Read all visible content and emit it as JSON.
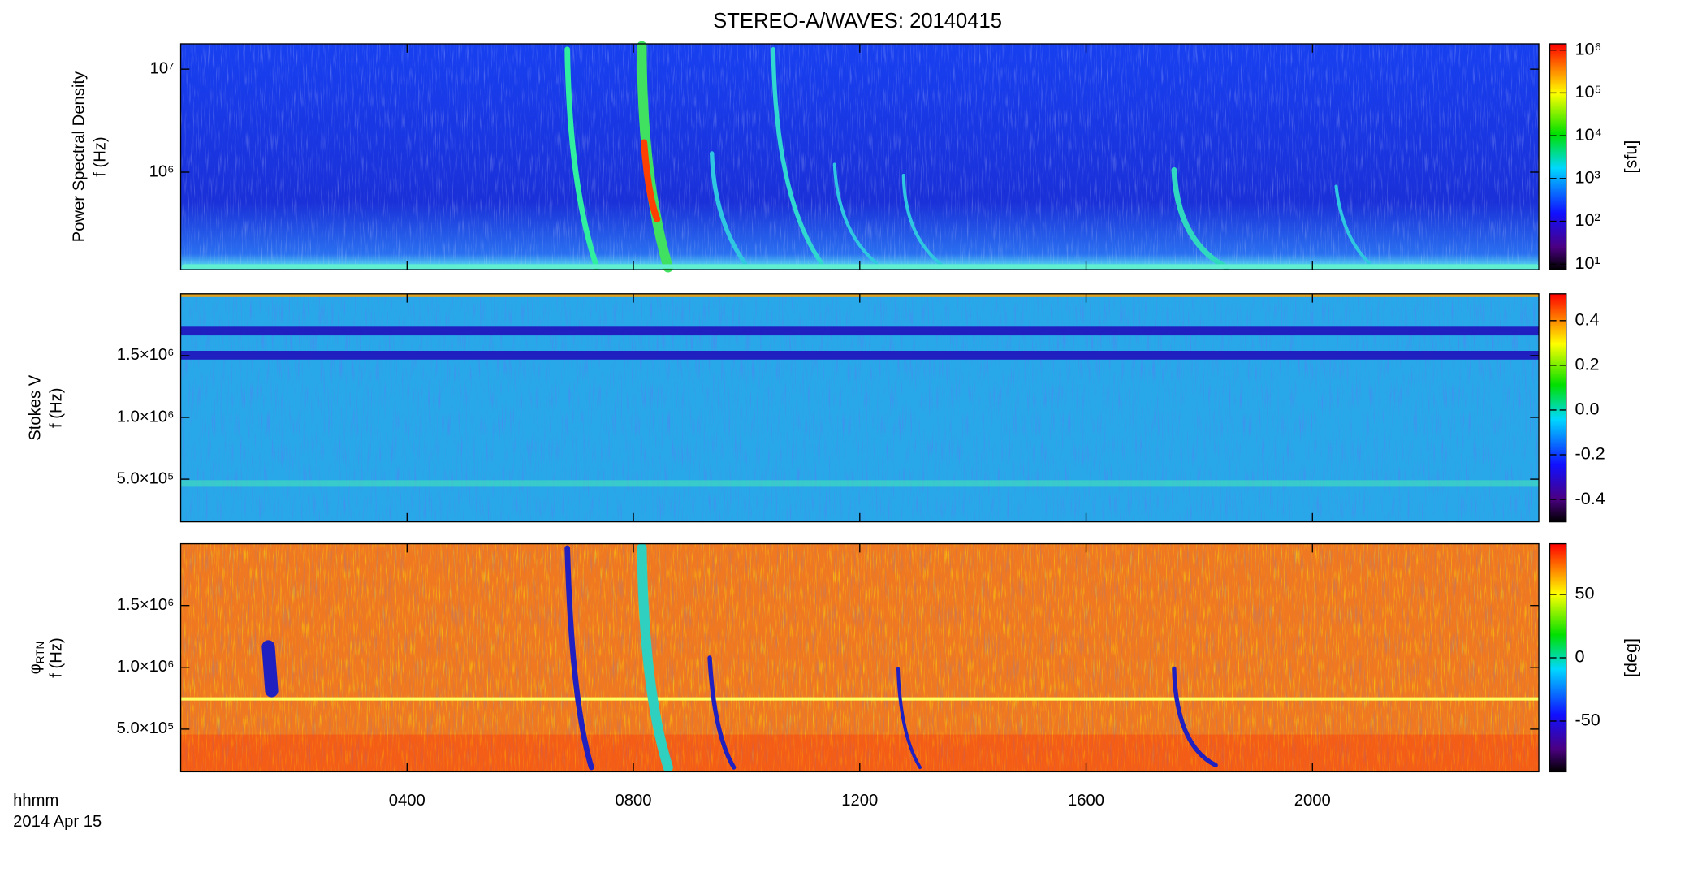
{
  "title": "STEREO-A/WAVES: 20140415",
  "x_label": "hhmm",
  "date_label": "2014 Apr 15",
  "xlim": [
    0,
    24
  ],
  "xticks": [
    {
      "value": 4,
      "label": "0400"
    },
    {
      "value": 8,
      "label": "0800"
    },
    {
      "value": 12,
      "label": "1200"
    },
    {
      "value": 16,
      "label": "1600"
    },
    {
      "value": 20,
      "label": "2000"
    }
  ],
  "chart_data": [
    {
      "type": "heatmap",
      "ylabel": "Power Spectral Density",
      "ylabel2": "f (Hz)",
      "ylog": true,
      "ylim": [
        113000,
        17600000
      ],
      "yticks": [
        {
          "value": 1000000,
          "label": "10⁶"
        },
        {
          "value": 10000000,
          "label": "10⁷"
        }
      ],
      "colorbar": {
        "log": true,
        "lim": [
          7.4,
          1400000
        ],
        "label": "[sfu]",
        "ticks": [
          {
            "value": 10,
            "label": "10¹"
          },
          {
            "value": 100,
            "label": "10²"
          },
          {
            "value": 1000,
            "label": "10³"
          },
          {
            "value": 10000,
            "label": "10⁴"
          },
          {
            "value": 100000,
            "label": "10⁵"
          },
          {
            "value": 1000000,
            "label": "10⁶"
          }
        ]
      }
    },
    {
      "type": "heatmap",
      "ylabel": "Stokes V",
      "ylabel2": "f (Hz)",
      "ylog": false,
      "ylim": [
        155000,
        2000000
      ],
      "yticks": [
        {
          "value": 500000,
          "label": "5.0×10⁵"
        },
        {
          "value": 1000000,
          "label": "1.0×10⁶"
        },
        {
          "value": 1500000,
          "label": "1.5×10⁶"
        }
      ],
      "colorbar": {
        "log": false,
        "lim": [
          -0.5,
          0.52
        ],
        "ticks": [
          {
            "value": -0.4,
            "label": "-0.4"
          },
          {
            "value": -0.2,
            "label": "-0.2"
          },
          {
            "value": 0,
            "label": "0.0"
          },
          {
            "value": 0.2,
            "label": "0.2"
          },
          {
            "value": 0.4,
            "label": "0.4"
          }
        ]
      }
    },
    {
      "type": "heatmap",
      "ylabel": "φ",
      "ylabel_sub": "RTN",
      "ylabel2": "f (Hz)",
      "ylog": false,
      "ylim": [
        155000,
        2000000
      ],
      "yticks": [
        {
          "value": 500000,
          "label": "5.0×10⁵"
        },
        {
          "value": 1000000,
          "label": "1.0×10⁶"
        },
        {
          "value": 1500000,
          "label": "1.5×10⁶"
        }
      ],
      "colorbar": {
        "log": false,
        "lim": [
          -90,
          90
        ],
        "label": "[deg]",
        "ticks": [
          {
            "value": -50,
            "label": "-50"
          },
          {
            "value": 0,
            "label": "0"
          },
          {
            "value": 50,
            "label": "50"
          }
        ]
      }
    }
  ]
}
